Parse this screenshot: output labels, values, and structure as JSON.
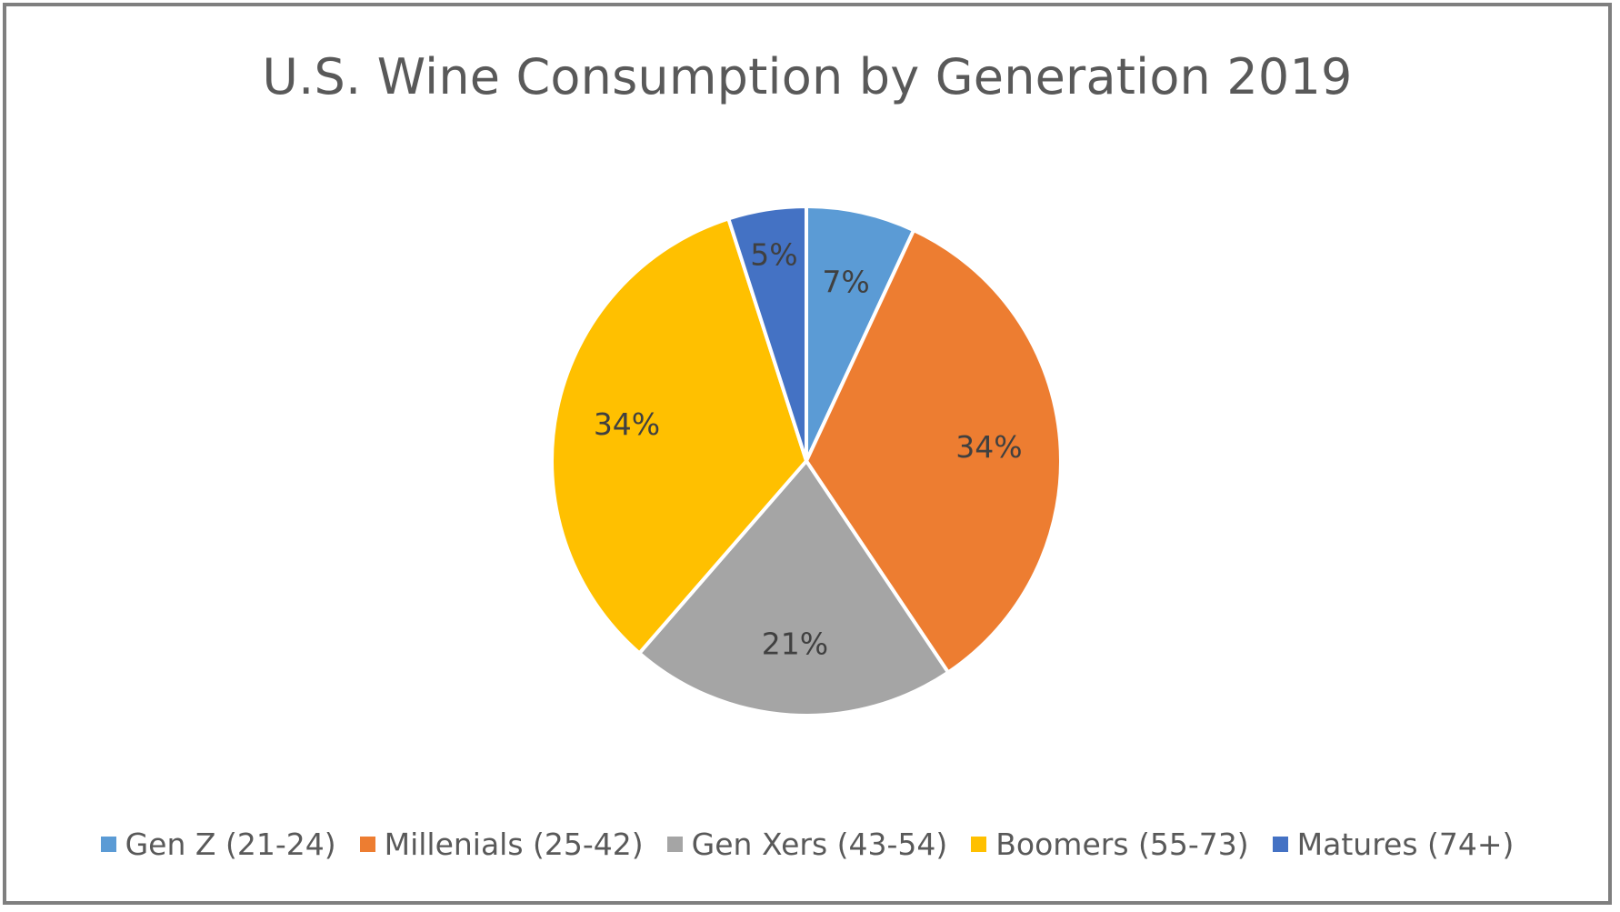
{
  "chart_data": {
    "type": "pie",
    "title": "U.S. Wine Consumption by Generation 2019",
    "categories": [
      "Gen Z (21-24)",
      "Millenials (25-42)",
      "Gen Xers (43-54)",
      "Boomers (55-73)",
      "Matures (74+)"
    ],
    "values": [
      7,
      34,
      21,
      34,
      5
    ],
    "data_labels": [
      "7%",
      "34%",
      "21%",
      "34%",
      "5%"
    ],
    "colors": [
      "#5b9bd5",
      "#ed7d31",
      "#a5a5a5",
      "#ffc000",
      "#4472c4"
    ],
    "legend_position": "bottom"
  }
}
